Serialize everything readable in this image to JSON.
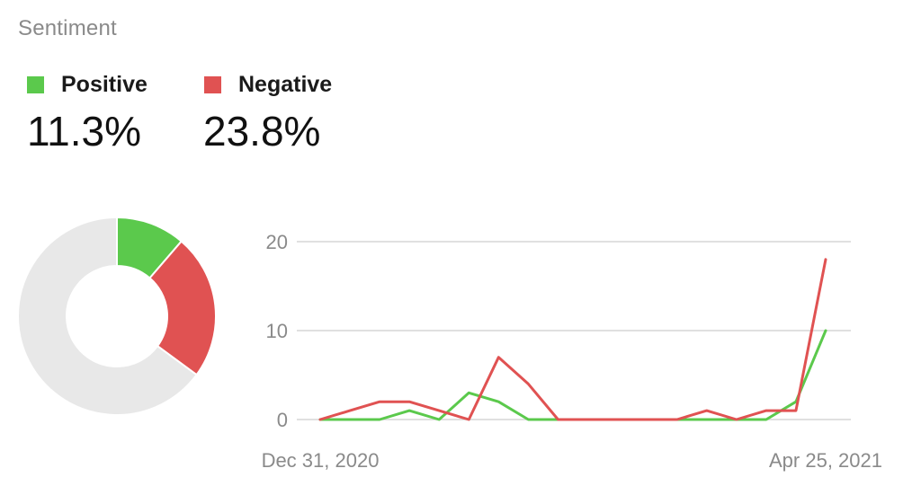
{
  "header": {
    "title": "Sentiment"
  },
  "legend": [
    {
      "label": "Positive",
      "color": "#5bc94c",
      "value": "11.3%"
    },
    {
      "label": "Negative",
      "color": "#e05252",
      "value": "23.8%"
    }
  ],
  "chart_data": [
    {
      "type": "pie",
      "variant": "donut",
      "slices": [
        {
          "name": "Positive",
          "value": 11.3,
          "color": "#5bc94c"
        },
        {
          "name": "Negative",
          "value": 23.8,
          "color": "#e05252"
        },
        {
          "name": "",
          "value": 64.9,
          "color": "#e8e8e8"
        }
      ]
    },
    {
      "type": "line",
      "x_tick_labels": [
        "Dec 31, 2020",
        "Apr 25, 2021"
      ],
      "y_ticks": [
        0,
        10,
        20
      ],
      "ylim": [
        0,
        20
      ],
      "grid": true,
      "series": [
        {
          "name": "Positive",
          "color": "#5bc94c",
          "values": [
            0,
            0,
            0,
            1,
            0,
            3,
            2,
            0,
            0,
            0,
            0,
            0,
            0,
            0,
            0,
            0,
            2,
            10
          ]
        },
        {
          "name": "Negative",
          "color": "#e05252",
          "values": [
            0,
            1,
            2,
            2,
            1,
            0,
            7,
            4,
            0,
            0,
            0,
            0,
            0,
            1,
            0,
            1,
            1,
            18
          ]
        }
      ]
    }
  ]
}
